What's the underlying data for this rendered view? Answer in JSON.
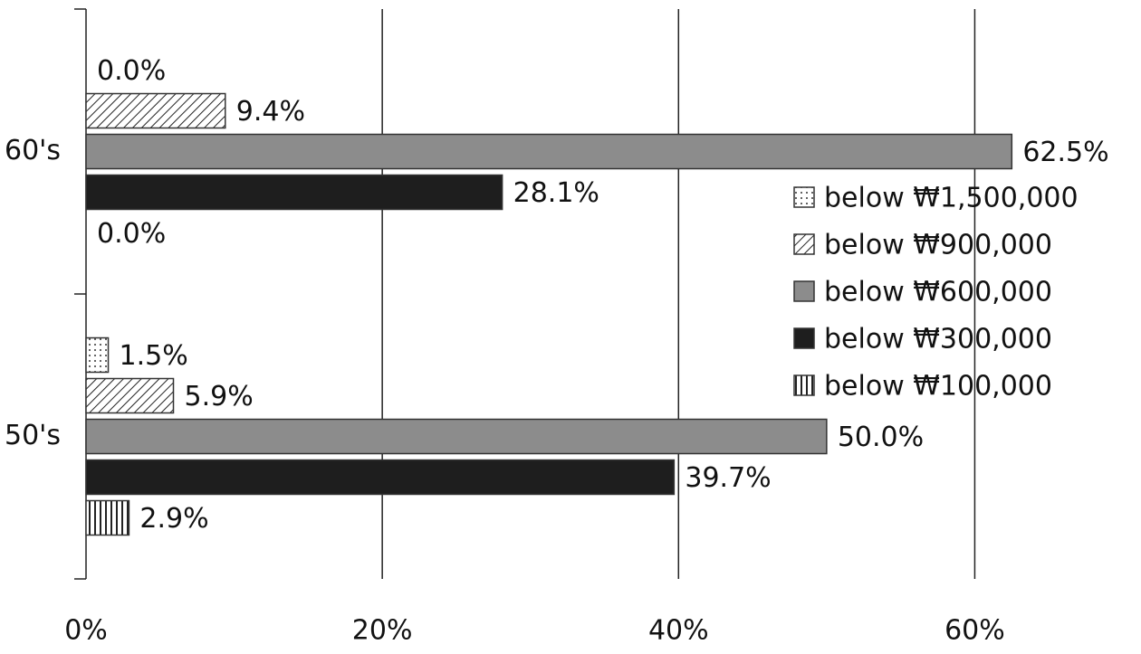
{
  "chart_data": {
    "type": "hbar",
    "categories": [
      "60's",
      "50's"
    ],
    "series": [
      {
        "name": "below ₩1,500,000",
        "color": "#ffffff",
        "pattern": "dots",
        "values": [
          0.0,
          1.5
        ],
        "value_labels": [
          "0.0%",
          "1.5%"
        ]
      },
      {
        "name": "below ₩900,000",
        "color": "#ffffff",
        "pattern": "diagonal",
        "values": [
          9.4,
          5.9
        ],
        "value_labels": [
          "9.4%",
          "5.9%"
        ]
      },
      {
        "name": "below ₩600,000",
        "color": "#8c8c8c",
        "pattern": "solid",
        "values": [
          62.5,
          50.0
        ],
        "value_labels": [
          "62.5%",
          "50.0%"
        ]
      },
      {
        "name": "below ₩300,000",
        "color": "#1e1e1e",
        "pattern": "solid",
        "values": [
          28.1,
          39.7
        ],
        "value_labels": [
          "28.1%",
          "39.7%"
        ]
      },
      {
        "name": "below ₩100,000",
        "color": "#ffffff",
        "pattern": "vertical",
        "values": [
          0.0,
          2.9
        ],
        "value_labels": [
          "0.0%",
          "2.9%"
        ]
      }
    ],
    "xlim": [
      0,
      70
    ],
    "xticks": [
      {
        "value": 0,
        "label": "0%"
      },
      {
        "value": 20,
        "label": "20%"
      },
      {
        "value": 40,
        "label": "40%"
      },
      {
        "value": 60,
        "label": "60%"
      }
    ],
    "grid": true,
    "legend": "right"
  }
}
